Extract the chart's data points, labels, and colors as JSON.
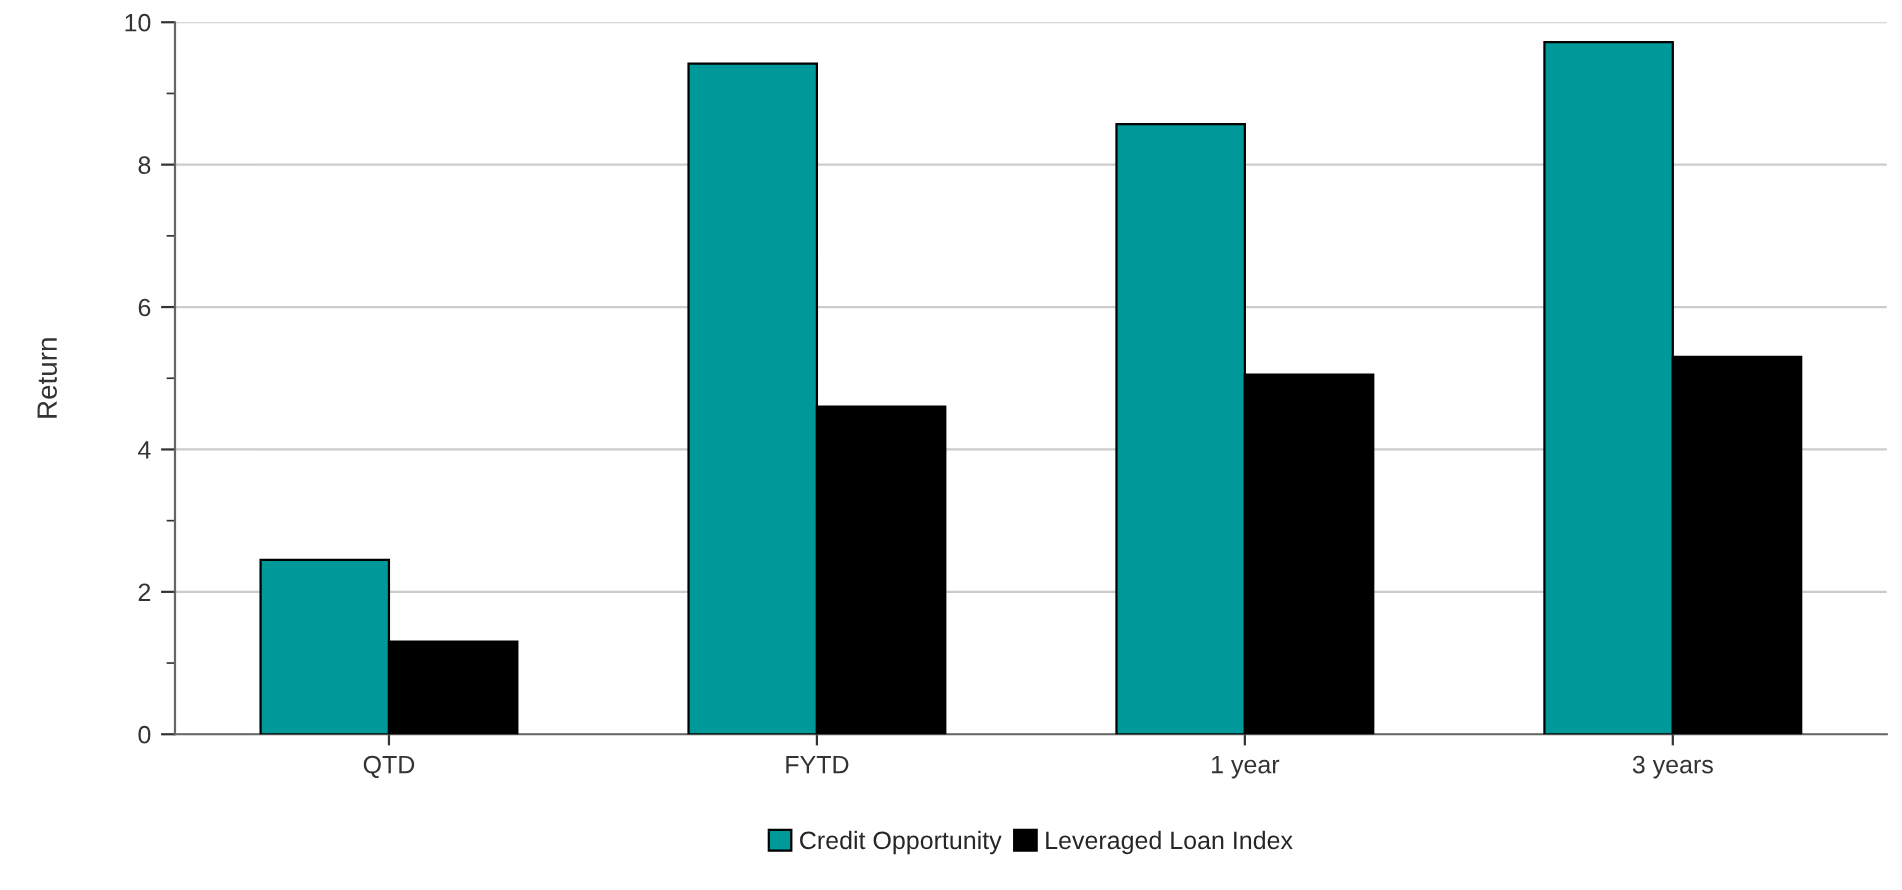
{
  "chart_data": {
    "type": "bar",
    "ylabel": "Return",
    "categories": [
      "QTD",
      "FYTD",
      "1 year",
      "3 years"
    ],
    "series": [
      {
        "name": "Credit Opportunity",
        "color": "#009999",
        "values": [
          2.45,
          9.42,
          8.57,
          9.72
        ]
      },
      {
        "name": "Leveraged Loan Index",
        "color": "#000000",
        "values": [
          1.3,
          4.6,
          5.05,
          5.3
        ]
      }
    ],
    "ylim": [
      0,
      10
    ],
    "yticks": [
      0,
      2,
      4,
      6,
      8,
      10
    ],
    "grid": "y",
    "legend": "bottom"
  }
}
